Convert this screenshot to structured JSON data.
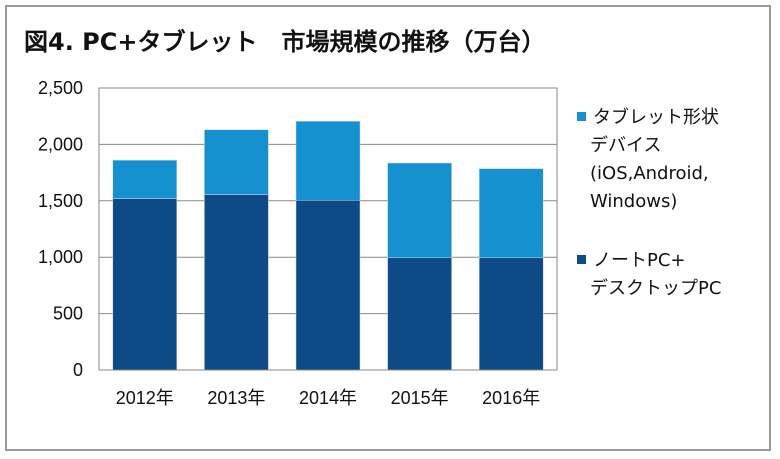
{
  "chart_data": {
    "type": "bar",
    "stacked": true,
    "title": "図4. PC+タブレット　市場規模の推移（万台）",
    "categories": [
      "2012年",
      "2013年",
      "2014年",
      "2015年",
      "2016年"
    ],
    "series": [
      {
        "name": "ノートPC+\nデスクトップPC",
        "color": "#0d4a86",
        "values": [
          1520,
          1555,
          1505,
          995,
          995
        ]
      },
      {
        "name": "タブレット形状\nデバイス\n(iOS,Android,\nWindows)",
        "color": "#1691cf",
        "values": [
          340,
          575,
          700,
          840,
          790
        ]
      }
    ],
    "ylim": [
      0,
      2500
    ],
    "yticks": [
      "0",
      "500",
      "1,000",
      "1,500",
      "2,000",
      "2,500"
    ],
    "grid": true,
    "legend_position": "right"
  }
}
